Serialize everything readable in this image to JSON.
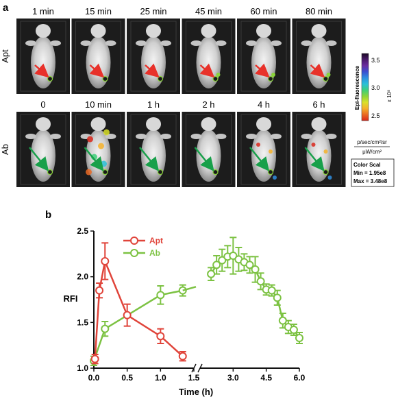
{
  "panel_a": {
    "label": "a",
    "rows": [
      {
        "label": "Apt",
        "arrow_color": "#e8312a",
        "timepoints": [
          "1 min",
          "15 min",
          "25 min",
          "45 min",
          "60 min",
          "80 min"
        ]
      },
      {
        "label": "Ab",
        "arrow_color": "#18a04a",
        "timepoints": [
          "0",
          "10 min",
          "1 h",
          "2 h",
          "4 h",
          "6 h"
        ]
      }
    ],
    "colorbar": {
      "title": "Epi-fluorescence",
      "ticks": [
        "3.5",
        "3.0",
        "2.5"
      ],
      "exponent": "x 10⁸",
      "units_top": "p/sec/cm²/sr",
      "units_bottom": "μW/cm²",
      "box_title": "Color Scal",
      "box_min": "Min = 1.95e8",
      "box_max": "Max = 3.48e8",
      "colors": [
        "#1a0a24",
        "#4b1a6b",
        "#6a2da0",
        "#3a4fd0",
        "#2f8ee0",
        "#2bc0d8",
        "#3fcf7a",
        "#8ad43a",
        "#d9e02a",
        "#f4b12a",
        "#ea6a24",
        "#d9281c"
      ]
    }
  },
  "chart_data": {
    "panel_label": "b",
    "type": "line",
    "xlabel": "Time (h)",
    "ylabel": "RFI",
    "ylim": [
      1.0,
      2.5
    ],
    "y_ticks": [
      "1.0",
      "1.5",
      "2.0",
      "2.5"
    ],
    "broken_x_axis": true,
    "segment_left": {
      "xlim": [
        0,
        1.5
      ],
      "x_ticks": [
        "0.0",
        "0.5",
        "1.0",
        "1.5"
      ]
    },
    "segment_right": {
      "xlim": [
        1.5,
        6.0
      ],
      "x_ticks": [
        "3.0",
        "4.5",
        "6.0"
      ]
    },
    "legend_position": "top",
    "series": [
      {
        "name": "Apt",
        "color": "#e0443a",
        "x": [
          0.017,
          0.083,
          0.167,
          0.5,
          1.0,
          1.333
        ],
        "y": [
          1.1,
          1.85,
          2.17,
          1.58,
          1.35,
          1.13
        ],
        "err": [
          0.05,
          0.08,
          0.2,
          0.12,
          0.08,
          0.05
        ]
      },
      {
        "name": "Ab",
        "color": "#7cc242",
        "x_left": [
          0,
          0.167,
          1.0,
          1.333
        ],
        "y_left": [
          1.08,
          1.43,
          1.8,
          1.85
        ],
        "err_left": [
          0.05,
          0.08,
          0.1,
          0.06
        ],
        "x_right": [
          2.0,
          2.25,
          2.5,
          2.75,
          3.0,
          3.25,
          3.5,
          3.75,
          4.0,
          4.25,
          4.5,
          4.75,
          5.0,
          5.25,
          5.5,
          5.75,
          6.0
        ],
        "y_right": [
          2.03,
          2.13,
          2.18,
          2.22,
          2.23,
          2.19,
          2.16,
          2.13,
          2.08,
          1.95,
          1.86,
          1.85,
          1.77,
          1.52,
          1.45,
          1.42,
          1.33
        ],
        "err_right": [
          0.07,
          0.1,
          0.12,
          0.12,
          0.2,
          0.13,
          0.09,
          0.09,
          0.14,
          0.09,
          0.06,
          0.06,
          0.08,
          0.08,
          0.07,
          0.06,
          0.06
        ]
      }
    ]
  }
}
